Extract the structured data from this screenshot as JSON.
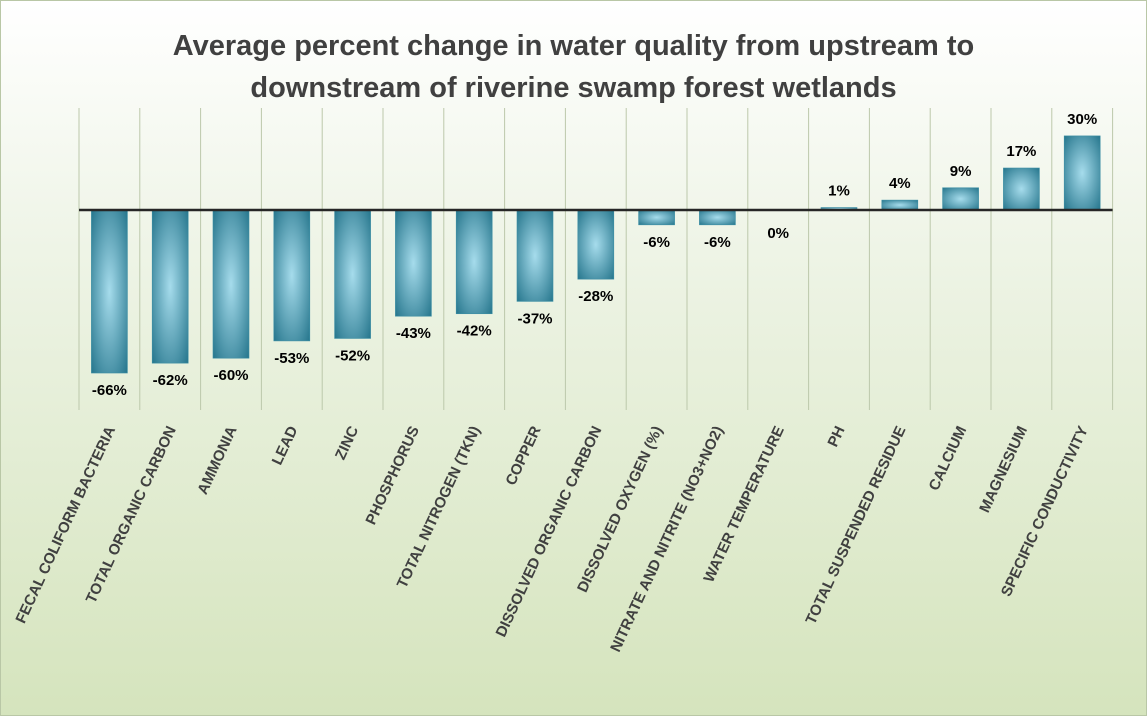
{
  "chart_data": {
    "type": "bar",
    "title_lines": [
      "Average percent change in water quality from upstream to",
      "downstream of riverine swamp forest wetlands"
    ],
    "categories": [
      "FECAL COLIFORM BACTERIA",
      "TOTAL ORGANIC CARBON",
      "AMMONIA",
      "LEAD",
      "ZINC",
      "PHOSPHORUS",
      "TOTAL NITROGEN (TKN)",
      "COPPER",
      "DISSOLVED ORGANIC CARBON",
      "DISSOLVED OXYGEN (%)",
      "NITRATE AND NITRITE (NO3+NO2)",
      "WATER TEMPERATURE",
      "PH",
      "TOTAL SUSPENDED RESIDUE",
      "CALCIUM",
      "MAGNESIUM",
      "SPECIFIC CONDUCTIVITY"
    ],
    "values": [
      -66,
      -62,
      -60,
      -53,
      -52,
      -43,
      -42,
      -37,
      -28,
      -6,
      -6,
      0,
      1,
      4,
      9,
      17,
      30
    ],
    "data_labels": [
      "-66%",
      "-62%",
      "-60%",
      "-53%",
      "-52%",
      "-43%",
      "-42%",
      "-37%",
      "-28%",
      "-6%",
      "-6%",
      "0%",
      "1%",
      "4%",
      "9%",
      "17%",
      "30%"
    ],
    "ylim": [
      -80,
      40
    ],
    "grid": "vertical category separators",
    "legend": "none",
    "colors": {
      "bar_center": "#a6dcec",
      "bar_edge": "#1d6f86",
      "axis": "#262626",
      "separator": "#bcc8ab",
      "label_text": "#404040",
      "data_label_text": "#000000"
    }
  }
}
